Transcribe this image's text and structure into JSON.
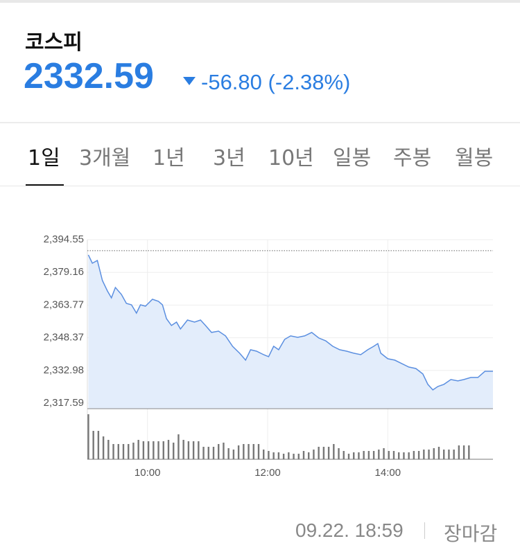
{
  "header": {
    "title": "코스피",
    "price": "2332.59",
    "change": "-56.80 (-2.38%)"
  },
  "tabs": [
    "1일",
    "3개월",
    "1년",
    "3년",
    "10년",
    "일봉",
    "주봉",
    "월봉"
  ],
  "chart_data": {
    "type": "line",
    "x": [
      541,
      545,
      550,
      555,
      560,
      564,
      568,
      574,
      579,
      584,
      589,
      593,
      598,
      605,
      611,
      615,
      619,
      624,
      629,
      633,
      640,
      647,
      653,
      658,
      664,
      671,
      678,
      685,
      692,
      698,
      703,
      709,
      716,
      721,
      726,
      731,
      737,
      743,
      750,
      757,
      764,
      771,
      778,
      785,
      792,
      799,
      806,
      813,
      820,
      826,
      830,
      833,
      840,
      847,
      854,
      861,
      868,
      875,
      880,
      885,
      890,
      896,
      903,
      910,
      916,
      923,
      930,
      937,
      945
    ],
    "values": [
      2387.38,
      2383.47,
      2384.77,
      2375.32,
      2370.43,
      2367.17,
      2372.06,
      2368.8,
      2364.56,
      2363.91,
      2359.99,
      2363.91,
      2363.25,
      2366.51,
      2365.54,
      2363.91,
      2357.39,
      2354.13,
      2355.76,
      2352.5,
      2356.73,
      2355.76,
      2356.73,
      2354.13,
      2350.87,
      2351.52,
      2349.24,
      2344.35,
      2341.09,
      2337.83,
      2342.72,
      2342.06,
      2340.43,
      2339.46,
      2344.35,
      2342.72,
      2347.61,
      2349.24,
      2348.58,
      2349.24,
      2350.87,
      2348.26,
      2346.95,
      2344.35,
      2342.72,
      2342.06,
      2341.09,
      2340.43,
      2342.72,
      2344.35,
      2345.65,
      2341.09,
      2338.48,
      2337.83,
      2336.2,
      2334.57,
      2333.91,
      2331.31,
      2326.42,
      2323.81,
      2325.44,
      2326.42,
      2328.7,
      2328.05,
      2328.7,
      2329.68,
      2329.68,
      2332.59,
      2332.59
    ],
    "color": "#5b8fe0",
    "fill_color": "#e3edfb",
    "xlim": [
      540,
      945
    ],
    "ylim": [
      2317.59,
      2394.55
    ],
    "xticks": [
      {
        "value": 600,
        "label": "10:00"
      },
      {
        "value": 720,
        "label": "12:00"
      },
      {
        "value": 840,
        "label": "14:00"
      }
    ],
    "yticks": [
      {
        "value": 2394.55,
        "label": "2,394.55"
      },
      {
        "value": 2379.16,
        "label": "2,379.16"
      },
      {
        "value": 2363.77,
        "label": "2,363.77"
      },
      {
        "value": 2348.37,
        "label": "2,348.37"
      },
      {
        "value": 2332.98,
        "label": "2,332.98"
      },
      {
        "value": 2317.59,
        "label": "2,317.59"
      }
    ],
    "grid": true,
    "reference_line": 2389.39,
    "volume": {
      "color": "#777777",
      "x": [
        541,
        546,
        551,
        556,
        561,
        566,
        571,
        576,
        581,
        586,
        591,
        596,
        601,
        606,
        611,
        616,
        621,
        626,
        631,
        636,
        641,
        646,
        651,
        656,
        661,
        666,
        671,
        676,
        681,
        686,
        691,
        696,
        701,
        706,
        711,
        716,
        721,
        726,
        731,
        736,
        741,
        746,
        751,
        756,
        761,
        766,
        771,
        776,
        781,
        786,
        791,
        796,
        801,
        806,
        811,
        816,
        821,
        826,
        831,
        836,
        841,
        846,
        851,
        856,
        861,
        866,
        871,
        876,
        881,
        886,
        891,
        896,
        901,
        906,
        911,
        916,
        921
      ],
      "values": [
        65,
        41,
        41,
        33,
        28,
        22,
        22,
        22,
        22,
        24,
        28,
        26,
        26,
        26,
        26,
        26,
        28,
        24,
        36,
        28,
        26,
        26,
        26,
        18,
        18,
        18,
        22,
        24,
        16,
        14,
        20,
        22,
        22,
        22,
        22,
        14,
        12,
        10,
        10,
        8,
        10,
        8,
        8,
        12,
        10,
        14,
        18,
        18,
        18,
        22,
        16,
        12,
        8,
        10,
        10,
        12,
        12,
        12,
        14,
        16,
        12,
        12,
        10,
        10,
        10,
        12,
        12,
        14,
        14,
        16,
        18,
        14,
        14,
        14,
        20,
        20,
        20
      ]
    }
  },
  "footer": {
    "time": "09.22. 18:59",
    "status": "장마감"
  }
}
